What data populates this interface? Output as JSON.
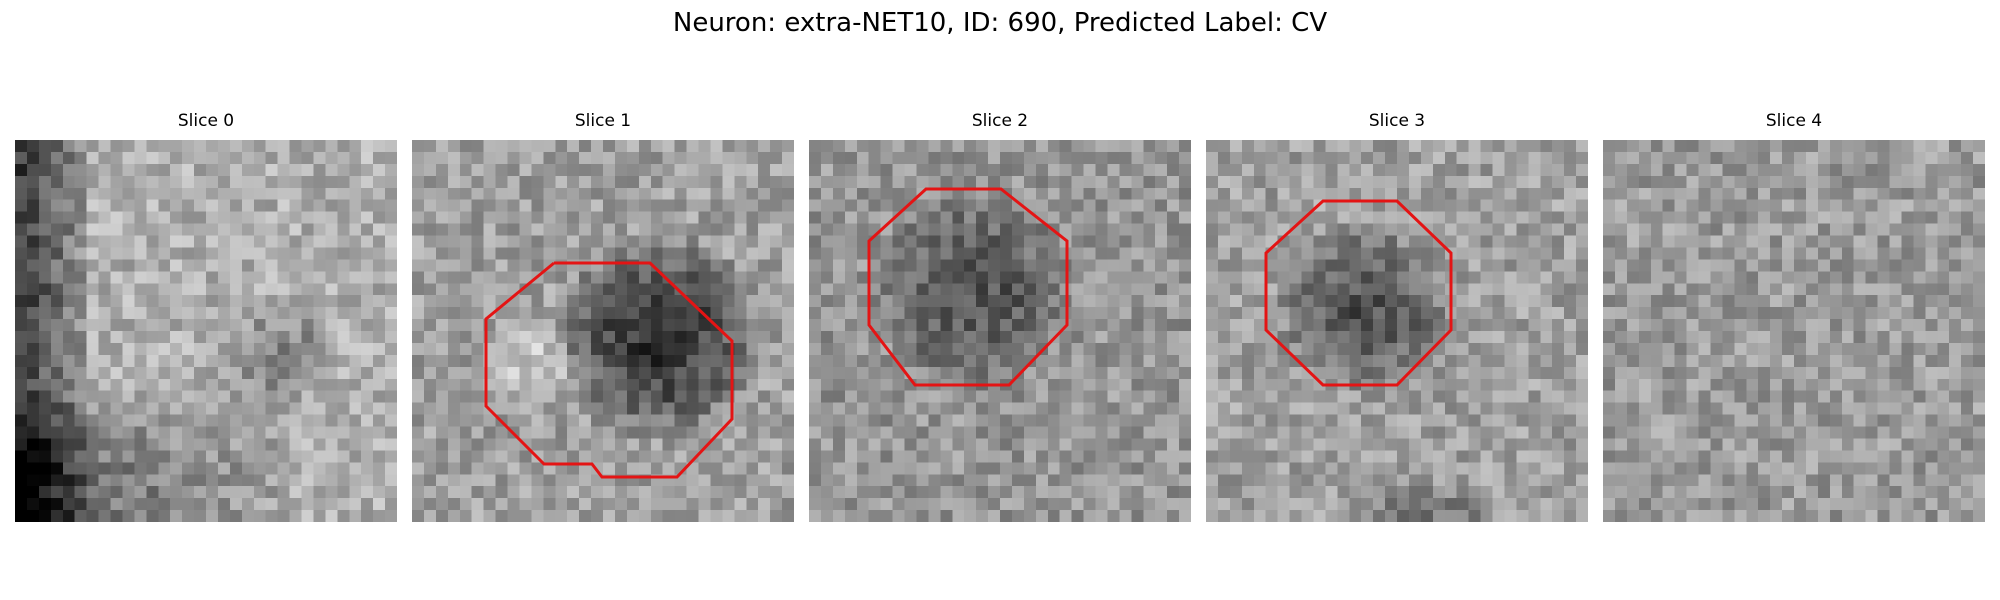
{
  "figure": {
    "title": "Neuron: extra-NET10, ID: 690, Predicted Label: CV"
  },
  "colors": {
    "contour": "#e41414",
    "background": "#ffffff"
  },
  "slices": [
    {
      "title": "Slice 0",
      "has_contour": false
    },
    {
      "title": "Slice 1",
      "has_contour": true
    },
    {
      "title": "Slice 2",
      "has_contour": true
    },
    {
      "title": "Slice 3",
      "has_contour": true
    },
    {
      "title": "Slice 4",
      "has_contour": false
    }
  ]
}
